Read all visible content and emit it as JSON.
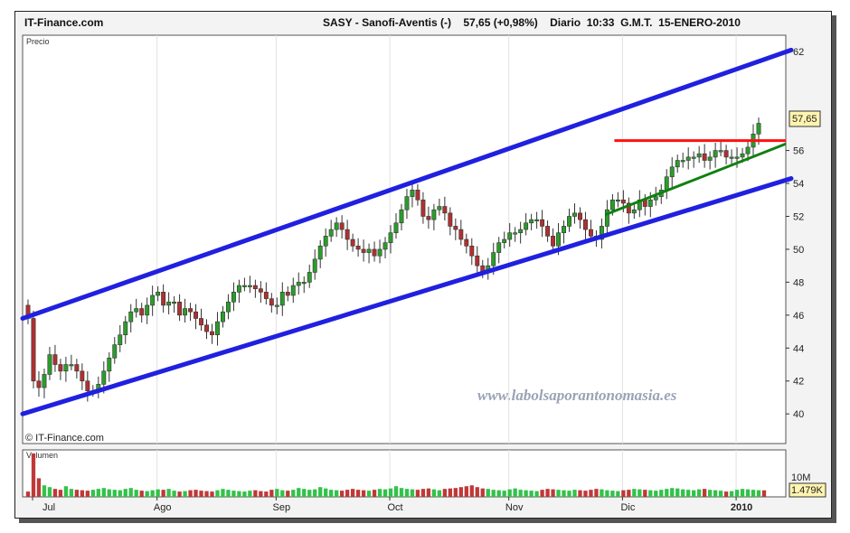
{
  "header": {
    "brand": "IT-Finance.com",
    "ticker": "SASY - Sanofi-Aventis (-)",
    "last": "57,65 (+0,98%)",
    "period": "Diario",
    "time": "10:33  G.M.T.",
    "date": "15-ENERO-2010"
  },
  "price_panel": {
    "label": "Precio",
    "copyright": "© IT-Finance.com",
    "last_badge": "57,65"
  },
  "volume_panel": {
    "label": "Volumen",
    "scale_label": "10M",
    "last_badge": "1.479K"
  },
  "watermark": "www.labolsaporantonomasia.es",
  "colors": {
    "up": "#2a9d2a",
    "down": "#b03030",
    "channel": "#2020e0",
    "resistance": "#ff1010",
    "support": "#108010"
  },
  "chart_data": {
    "type": "candlestick",
    "y_ticks": [
      40,
      42,
      44,
      46,
      48,
      50,
      52,
      54,
      56,
      62
    ],
    "ylim": [
      38.2,
      63
    ],
    "months": [
      "Jul",
      "Ago",
      "Sep",
      "Oct",
      "Nov",
      "Dic",
      "2010"
    ],
    "close": [
      45.8,
      42.0,
      41.6,
      42.4,
      43.6,
      43.0,
      42.6,
      43.0,
      43.0,
      42.6,
      42.0,
      41.4,
      41.4,
      41.8,
      42.6,
      43.4,
      44.2,
      44.8,
      45.6,
      46.2,
      46.4,
      46.0,
      46.6,
      47.2,
      47.4,
      46.6,
      46.8,
      46.8,
      46.0,
      46.4,
      46.2,
      45.8,
      45.4,
      45.0,
      44.8,
      45.6,
      46.2,
      46.8,
      47.4,
      47.8,
      47.8,
      47.8,
      47.6,
      47.4,
      47.0,
      46.6,
      46.6,
      47.4,
      47.2,
      47.8,
      48.0,
      48.0,
      48.6,
      49.4,
      50.2,
      50.8,
      51.2,
      51.6,
      51.2,
      50.6,
      50.2,
      50.0,
      49.8,
      50.0,
      49.6,
      50.0,
      50.4,
      51.0,
      51.6,
      52.4,
      53.2,
      53.6,
      53.0,
      52.0,
      51.8,
      52.4,
      52.6,
      52.2,
      51.4,
      51.2,
      50.6,
      50.2,
      49.6,
      49.0,
      48.6,
      49.0,
      49.8,
      50.4,
      50.6,
      51.0,
      51.0,
      51.2,
      51.6,
      51.8,
      51.8,
      51.4,
      50.8,
      50.2,
      51.0,
      51.4,
      52.0,
      52.2,
      51.8,
      51.2,
      50.8,
      50.6,
      51.4,
      52.4,
      53.0,
      53.0,
      52.8,
      52.2,
      52.4,
      53.0,
      52.6,
      53.0,
      53.2,
      53.6,
      54.4,
      55.0,
      55.4,
      55.4,
      55.6,
      55.6,
      55.8,
      55.4,
      55.6,
      56.0,
      56.0,
      55.6,
      55.6,
      55.6,
      55.8,
      56.2,
      57.0,
      57.65
    ],
    "volume_millions": [
      1.2,
      9.8,
      4.2,
      2.6,
      2.2,
      1.8,
      1.6,
      2.4,
      1.8,
      1.6,
      1.5,
      1.4,
      1.6,
      1.8,
      2.0,
      1.7,
      1.6,
      1.5,
      1.8,
      2.0,
      1.6,
      1.4,
      1.3,
      1.5,
      1.7,
      1.6,
      1.8,
      1.4,
      1.2,
      1.3,
      1.5,
      1.6,
      1.4,
      1.3,
      1.2,
      1.5,
      1.8,
      1.6,
      1.4,
      1.3,
      1.2,
      1.4,
      1.5,
      1.3,
      1.2,
      1.6,
      1.8,
      1.5,
      1.4,
      1.6,
      2.0,
      1.8,
      1.6,
      1.7,
      2.2,
      1.9,
      1.6,
      1.5,
      1.4,
      1.6,
      1.8,
      1.6,
      1.5,
      1.4,
      1.6,
      1.8,
      1.7,
      1.9,
      2.4,
      2.0,
      1.8,
      1.7,
      1.6,
      1.8,
      1.9,
      1.7,
      1.5,
      1.8,
      1.9,
      2.0,
      2.2,
      2.4,
      2.6,
      2.2,
      1.9,
      1.8,
      1.6,
      1.5,
      1.4,
      1.7,
      1.9,
      1.6,
      1.5,
      1.4,
      1.3,
      1.6,
      1.8,
      1.7,
      1.6,
      1.5,
      1.4,
      1.6,
      1.5,
      1.4,
      1.6,
      1.8,
      1.7,
      1.5,
      1.4,
      1.3,
      1.5,
      1.6,
      1.8,
      1.7,
      1.6,
      1.5,
      1.4,
      1.6,
      1.8,
      2.0,
      1.9,
      1.7,
      1.6,
      1.5,
      1.7,
      1.8,
      1.6,
      1.5,
      1.4,
      1.2,
      1.3,
      1.6,
      1.8,
      1.7,
      1.6,
      1.5,
      1.48
    ],
    "channel_upper": [
      [
        0,
        45.8
      ],
      [
        136,
        62.1
      ]
    ],
    "channel_lower": [
      [
        0,
        40.0
      ],
      [
        136,
        54.3
      ]
    ],
    "resistance": [
      [
        108,
        56.6
      ],
      [
        136,
        56.6
      ]
    ],
    "support": [
      [
        108,
        52.1
      ],
      [
        136,
        56.4
      ]
    ]
  }
}
